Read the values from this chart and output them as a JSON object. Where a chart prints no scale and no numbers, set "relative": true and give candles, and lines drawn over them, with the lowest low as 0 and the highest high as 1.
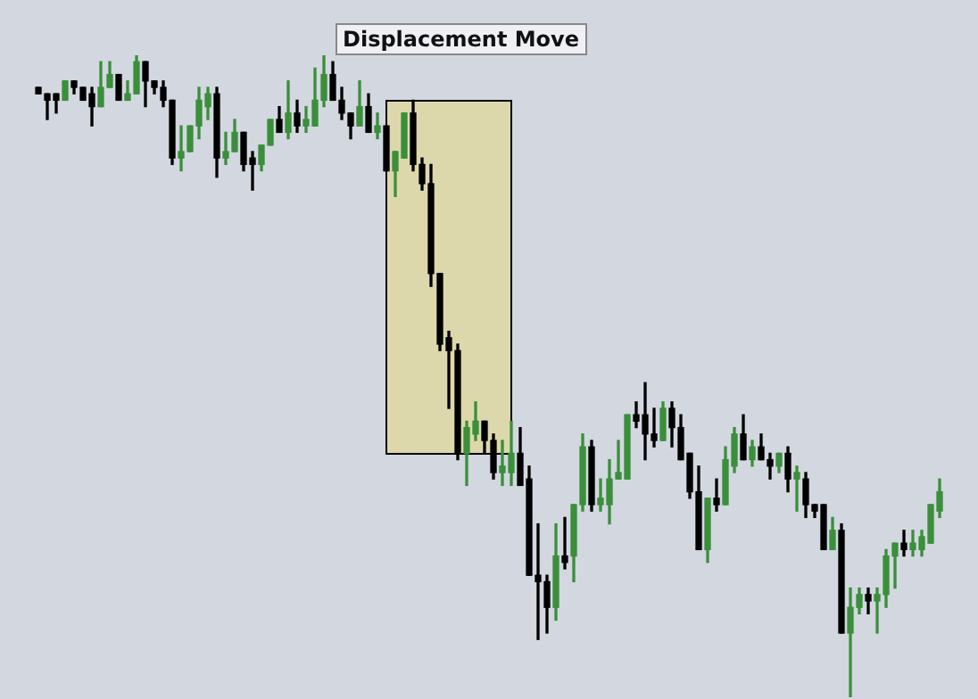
{
  "chart_data": {
    "type": "candlestick",
    "relative": true,
    "categories": [
      null,
      null,
      null,
      null,
      null,
      null,
      null,
      null,
      null,
      null,
      null,
      null,
      null,
      null,
      null,
      null,
      null,
      null,
      null,
      null,
      null,
      null,
      null,
      null,
      null,
      null,
      null,
      null,
      null,
      null,
      null,
      null,
      null,
      null,
      null,
      null,
      null,
      null,
      null,
      null,
      null,
      null,
      null,
      null,
      null,
      null,
      null,
      null,
      null,
      null,
      null,
      null,
      null,
      null,
      null,
      null,
      null,
      null,
      null,
      null,
      null,
      null,
      null,
      null,
      null,
      null,
      null,
      null,
      null,
      null,
      null,
      null,
      null,
      null,
      null,
      null,
      null,
      null,
      null,
      null,
      null,
      null,
      null,
      null,
      null,
      null,
      null,
      null,
      null,
      null,
      null,
      null,
      null,
      null,
      null,
      null,
      null,
      null,
      null,
      null,
      null,
      null
    ],
    "ohlc": [
      [
        0.95,
        0.95,
        0.94,
        0.94
      ],
      [
        0.94,
        0.94,
        0.9,
        0.93
      ],
      [
        0.94,
        0.94,
        0.91,
        0.93
      ],
      [
        0.93,
        0.96,
        0.93,
        0.96
      ],
      [
        0.96,
        0.96,
        0.94,
        0.95
      ],
      [
        0.95,
        0.95,
        0.93,
        0.93
      ],
      [
        0.94,
        0.95,
        0.89,
        0.92
      ],
      [
        0.92,
        0.99,
        0.92,
        0.95
      ],
      [
        0.95,
        0.99,
        0.95,
        0.97
      ],
      [
        0.97,
        0.97,
        0.93,
        0.93
      ],
      [
        0.93,
        0.96,
        0.93,
        0.94
      ],
      [
        0.94,
        1.0,
        0.94,
        0.99
      ],
      [
        0.99,
        0.99,
        0.92,
        0.96
      ],
      [
        0.96,
        0.96,
        0.94,
        0.95
      ],
      [
        0.95,
        0.96,
        0.92,
        0.93
      ],
      [
        0.93,
        0.93,
        0.83,
        0.84
      ],
      [
        0.84,
        0.89,
        0.82,
        0.85
      ],
      [
        0.85,
        0.89,
        0.85,
        0.89
      ],
      [
        0.89,
        0.95,
        0.87,
        0.93
      ],
      [
        0.92,
        0.95,
        0.9,
        0.94
      ],
      [
        0.94,
        0.95,
        0.81,
        0.84
      ],
      [
        0.84,
        0.88,
        0.83,
        0.85
      ],
      [
        0.85,
        0.9,
        0.85,
        0.88
      ],
      [
        0.88,
        0.88,
        0.82,
        0.83
      ],
      [
        0.84,
        0.85,
        0.79,
        0.83
      ],
      [
        0.83,
        0.86,
        0.82,
        0.86
      ],
      [
        0.86,
        0.9,
        0.86,
        0.9
      ],
      [
        0.9,
        0.92,
        0.88,
        0.88
      ],
      [
        0.88,
        0.96,
        0.87,
        0.91
      ],
      [
        0.91,
        0.93,
        0.88,
        0.89
      ],
      [
        0.89,
        0.92,
        0.88,
        0.9
      ],
      [
        0.89,
        0.98,
        0.89,
        0.93
      ],
      [
        0.93,
        1.0,
        0.92,
        0.97
      ],
      [
        0.97,
        0.99,
        0.93,
        0.93
      ],
      [
        0.93,
        0.95,
        0.9,
        0.91
      ],
      [
        0.91,
        0.91,
        0.87,
        0.89
      ],
      [
        0.89,
        0.96,
        0.89,
        0.92
      ],
      [
        0.92,
        0.94,
        0.88,
        0.88
      ],
      [
        0.88,
        0.91,
        0.87,
        0.89
      ],
      [
        0.89,
        0.89,
        0.82,
        0.82
      ],
      [
        0.82,
        0.85,
        0.78,
        0.85
      ],
      [
        0.84,
        0.91,
        0.84,
        0.91
      ],
      [
        0.91,
        0.93,
        0.82,
        0.83
      ],
      [
        0.83,
        0.84,
        0.79,
        0.8
      ],
      [
        0.8,
        0.83,
        0.64,
        0.66
      ],
      [
        0.66,
        0.66,
        0.54,
        0.55
      ],
      [
        0.56,
        0.57,
        0.45,
        0.54
      ],
      [
        0.54,
        0.55,
        0.37,
        0.38
      ],
      [
        0.38,
        0.43,
        0.33,
        0.42
      ],
      [
        0.41,
        0.46,
        0.4,
        0.43
      ],
      [
        0.43,
        0.43,
        0.38,
        0.4
      ],
      [
        0.4,
        0.41,
        0.34,
        0.35
      ],
      [
        0.35,
        0.4,
        0.33,
        0.36
      ],
      [
        0.35,
        0.43,
        0.33,
        0.38
      ],
      [
        0.38,
        0.42,
        0.33,
        0.33
      ],
      [
        0.34,
        0.36,
        0.19,
        0.19
      ],
      [
        0.19,
        0.27,
        0.09,
        0.18
      ],
      [
        0.18,
        0.19,
        0.1,
        0.14
      ],
      [
        0.14,
        0.27,
        0.12,
        0.22
      ],
      [
        0.22,
        0.28,
        0.2,
        0.21
      ],
      [
        0.22,
        0.3,
        0.18,
        0.3
      ],
      [
        0.3,
        0.41,
        0.29,
        0.39
      ],
      [
        0.39,
        0.4,
        0.29,
        0.3
      ],
      [
        0.3,
        0.34,
        0.29,
        0.31
      ],
      [
        0.3,
        0.37,
        0.27,
        0.34
      ],
      [
        0.34,
        0.4,
        0.34,
        0.35
      ],
      [
        0.34,
        0.44,
        0.34,
        0.44
      ],
      [
        0.44,
        0.46,
        0.42,
        0.43
      ],
      [
        0.44,
        0.49,
        0.37,
        0.41
      ],
      [
        0.41,
        0.45,
        0.39,
        0.4
      ],
      [
        0.4,
        0.46,
        0.4,
        0.45
      ],
      [
        0.45,
        0.46,
        0.39,
        0.42
      ],
      [
        0.42,
        0.44,
        0.37,
        0.37
      ],
      [
        0.38,
        0.38,
        0.31,
        0.32
      ],
      [
        0.32,
        0.36,
        0.23,
        0.23
      ],
      [
        0.23,
        0.31,
        0.21,
        0.31
      ],
      [
        0.31,
        0.34,
        0.29,
        0.3
      ],
      [
        0.3,
        0.39,
        0.3,
        0.37
      ],
      [
        0.36,
        0.42,
        0.35,
        0.41
      ],
      [
        0.41,
        0.44,
        0.37,
        0.37
      ],
      [
        0.37,
        0.4,
        0.36,
        0.39
      ],
      [
        0.39,
        0.41,
        0.37,
        0.37
      ],
      [
        0.37,
        0.38,
        0.34,
        0.36
      ],
      [
        0.36,
        0.38,
        0.35,
        0.38
      ],
      [
        0.38,
        0.39,
        0.32,
        0.34
      ],
      [
        0.34,
        0.36,
        0.29,
        0.35
      ],
      [
        0.34,
        0.35,
        0.28,
        0.3
      ],
      [
        0.3,
        0.3,
        0.28,
        0.29
      ],
      [
        0.3,
        0.3,
        0.23,
        0.23
      ],
      [
        0.23,
        0.28,
        0.23,
        0.26
      ],
      [
        0.26,
        0.27,
        0.1,
        0.1
      ],
      [
        0.1,
        0.17,
        0.0,
        0.14
      ],
      [
        0.14,
        0.17,
        0.13,
        0.16
      ],
      [
        0.16,
        0.17,
        0.13,
        0.15
      ],
      [
        0.15,
        0.17,
        0.1,
        0.16
      ],
      [
        0.16,
        0.23,
        0.14,
        0.22
      ],
      [
        0.22,
        0.24,
        0.17,
        0.24
      ],
      [
        0.24,
        0.26,
        0.22,
        0.23
      ],
      [
        0.23,
        0.26,
        0.22,
        0.24
      ],
      [
        0.23,
        0.26,
        0.22,
        0.25
      ],
      [
        0.24,
        0.3,
        0.24,
        0.3
      ],
      [
        0.29,
        0.34,
        0.28,
        0.32
      ]
    ],
    "colors": [
      "#000000",
      "#000000",
      "#000000",
      "#3a8f3a",
      "#000000",
      "#000000",
      "#000000",
      "#3a8f3a",
      "#3a8f3a",
      "#000000",
      "#3a8f3a",
      "#3a8f3a",
      "#000000",
      "#000000",
      "#000000",
      "#000000",
      "#3a8f3a",
      "#3a8f3a",
      "#3a8f3a",
      "#3a8f3a",
      "#000000",
      "#3a8f3a",
      "#3a8f3a",
      "#000000",
      "#000000",
      "#3a8f3a",
      "#3a8f3a",
      "#000000",
      "#3a8f3a",
      "#000000",
      "#3a8f3a",
      "#3a8f3a",
      "#3a8f3a",
      "#000000",
      "#000000",
      "#000000",
      "#3a8f3a",
      "#000000",
      "#3a8f3a",
      "#000000",
      "#3a8f3a",
      "#3a8f3a",
      "#000000",
      "#000000",
      "#000000",
      "#000000",
      "#000000",
      "#000000",
      "#3a8f3a",
      "#3a8f3a",
      "#000000",
      "#000000",
      "#3a8f3a",
      "#3a8f3a",
      "#000000",
      "#000000",
      "#000000",
      "#000000",
      "#3a8f3a",
      "#000000",
      "#3a8f3a",
      "#3a8f3a",
      "#000000",
      "#3a8f3a",
      "#3a8f3a",
      "#3a8f3a",
      "#3a8f3a",
      "#000000",
      "#000000",
      "#000000",
      "#3a8f3a",
      "#000000",
      "#000000",
      "#000000",
      "#000000",
      "#3a8f3a",
      "#000000",
      "#3a8f3a",
      "#3a8f3a",
      "#000000",
      "#3a8f3a",
      "#000000",
      "#000000",
      "#3a8f3a",
      "#000000",
      "#3a8f3a",
      "#000000",
      "#000000",
      "#000000",
      "#3a8f3a",
      "#000000",
      "#3a8f3a",
      "#3a8f3a",
      "#000000",
      "#3a8f3a",
      "#3a8f3a",
      "#3a8f3a",
      "#000000",
      "#3a8f3a",
      "#3a8f3a",
      "#3a8f3a",
      "#3a8f3a"
    ],
    "annotations": [
      "Displacement Move"
    ]
  }
}
